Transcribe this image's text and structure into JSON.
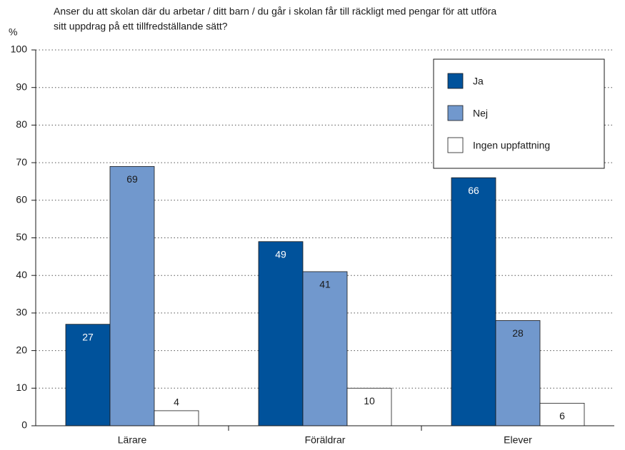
{
  "chart_data": {
    "type": "bar",
    "title": [
      "Anser du att skolan där du arbetar / ditt barn / du går i skolan får till räckligt med pengar för att utföra",
      "sitt uppdrag på ett tillfredställande sätt?"
    ],
    "y_label": "%",
    "categories": [
      "Lärare",
      "Föräldrar",
      "Elever"
    ],
    "series": [
      {
        "name": "Ja",
        "color": "#00529b",
        "values": [
          27,
          49,
          66
        ]
      },
      {
        "name": "Nej",
        "color": "#7198cd",
        "values": [
          69,
          41,
          28
        ]
      },
      {
        "name": "Ingen uppfattning",
        "color": "#ffffff",
        "values": [
          4,
          10,
          6
        ]
      }
    ],
    "ylim": [
      0,
      100
    ],
    "yticks": [
      0,
      10,
      20,
      30,
      40,
      50,
      60,
      70,
      80,
      90,
      100
    ],
    "grid": true,
    "legend": "top right"
  }
}
